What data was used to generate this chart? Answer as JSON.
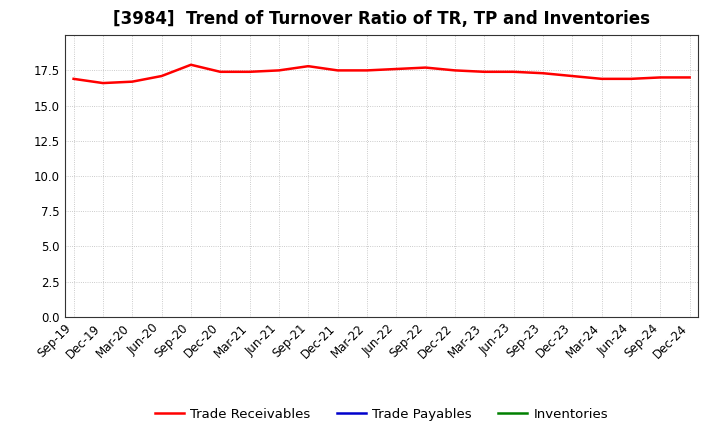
{
  "title": "[3984]  Trend of Turnover Ratio of TR, TP and Inventories",
  "x_labels": [
    "Sep-19",
    "Dec-19",
    "Mar-20",
    "Jun-20",
    "Sep-20",
    "Dec-20",
    "Mar-21",
    "Jun-21",
    "Sep-21",
    "Dec-21",
    "Mar-22",
    "Jun-22",
    "Sep-22",
    "Dec-22",
    "Mar-23",
    "Jun-23",
    "Sep-23",
    "Dec-23",
    "Mar-24",
    "Jun-24",
    "Sep-24",
    "Dec-24"
  ],
  "trade_receivables": [
    16.9,
    16.6,
    16.7,
    17.1,
    17.9,
    17.4,
    17.4,
    17.5,
    17.8,
    17.5,
    17.5,
    17.6,
    17.7,
    17.5,
    17.4,
    17.4,
    17.3,
    17.1,
    16.9,
    16.9,
    17.0,
    17.0
  ],
  "trade_payables": [
    null,
    null,
    null,
    null,
    null,
    null,
    null,
    null,
    null,
    null,
    null,
    null,
    null,
    null,
    null,
    null,
    null,
    null,
    null,
    null,
    null,
    null
  ],
  "inventories": [
    null,
    null,
    null,
    null,
    null,
    null,
    null,
    null,
    null,
    null,
    null,
    null,
    null,
    null,
    null,
    null,
    null,
    null,
    null,
    null,
    null,
    null
  ],
  "tr_color": "#FF0000",
  "tp_color": "#0000CC",
  "inv_color": "#008000",
  "ylim": [
    0,
    20
  ],
  "yticks": [
    0.0,
    2.5,
    5.0,
    7.5,
    10.0,
    12.5,
    15.0,
    17.5
  ],
  "plot_bg_color": "#FFFFFF",
  "fig_bg_color": "#FFFFFF",
  "grid_color": "#BBBBBB",
  "legend_labels": [
    "Trade Receivables",
    "Trade Payables",
    "Inventories"
  ],
  "title_fontsize": 12,
  "tick_fontsize": 8.5,
  "legend_fontsize": 9.5
}
